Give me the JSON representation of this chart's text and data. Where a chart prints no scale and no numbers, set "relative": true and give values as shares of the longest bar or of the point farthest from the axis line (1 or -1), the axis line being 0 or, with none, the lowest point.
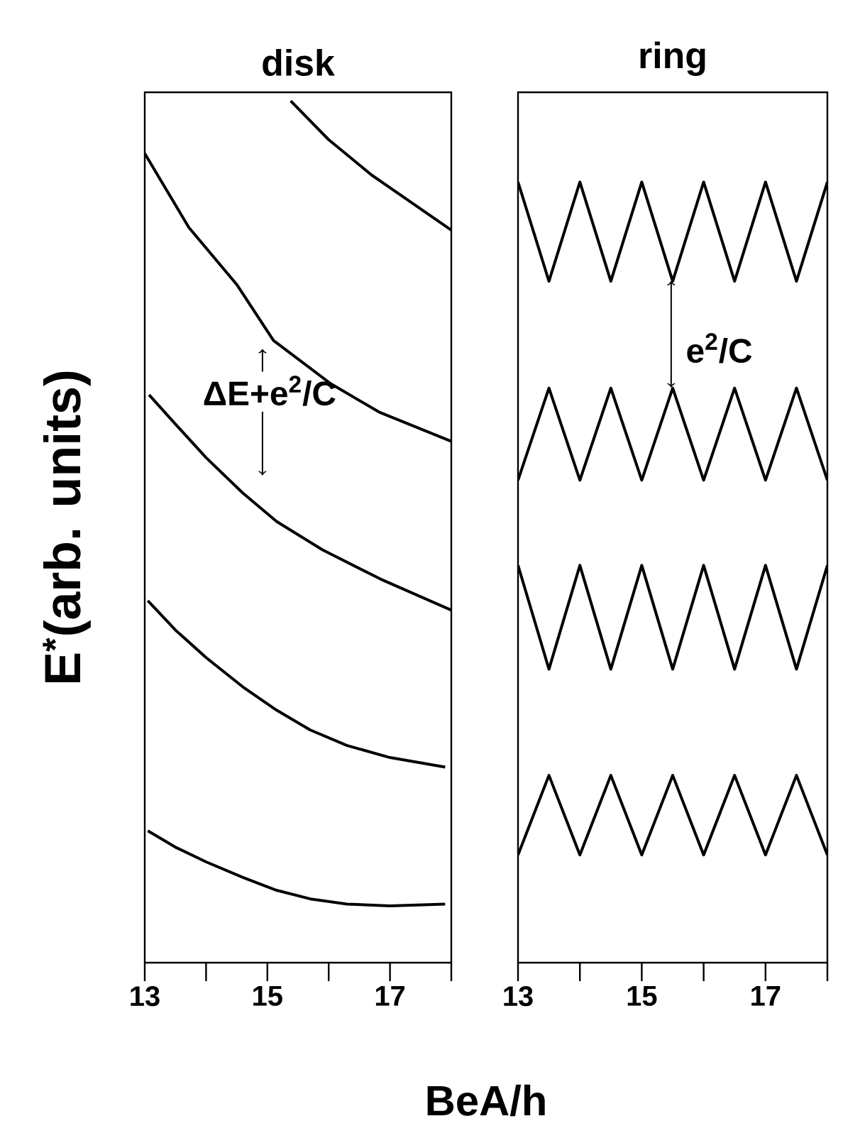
{
  "chart_data": [
    {
      "type": "line",
      "title": "disk",
      "xlabel": "BeA/h",
      "ylabel": "E$^{*}$(arb. units)",
      "relative": true,
      "xlim": [
        13,
        18
      ],
      "xticks": [
        13,
        {
          "value": 14,
          "label": null
        },
        15,
        {
          "value": 16,
          "label": null
        },
        17,
        {
          "value": 18,
          "label": null
        }
      ],
      "annotations": [
        "ΔE+e$^{2}$/C"
      ],
      "series": [
        {
          "color": "#000000",
          "x": [
            13.05,
            13.5,
            14,
            14.6,
            15.15,
            15.7,
            16.3,
            17,
            17.9
          ],
          "values": [
            0.153,
            0.134,
            0.117,
            0.099,
            0.084,
            0.074,
            0.068,
            0.066,
            0.068
          ]
        },
        {
          "color": "#000000",
          "x": [
            13.05,
            13.5,
            14,
            14.6,
            15.15,
            15.7,
            16.3,
            17,
            17.9
          ],
          "values": [
            0.42,
            0.386,
            0.354,
            0.32,
            0.293,
            0.27,
            0.252,
            0.238,
            0.227
          ]
        },
        {
          "color": "#000000",
          "x": [
            13.07,
            13.5,
            14,
            14.6,
            15.15,
            15.9,
            16.85,
            18
          ],
          "values": [
            0.659,
            0.625,
            0.586,
            0.545,
            0.512,
            0.479,
            0.445,
            0.409
          ]
        },
        {
          "color": "#000000",
          "x": [
            13,
            13.72,
            14.5,
            15.1,
            16.03,
            16.82,
            18
          ],
          "values": [
            0.939,
            0.853,
            0.787,
            0.722,
            0.672,
            0.639,
            0.605
          ]
        },
        {
          "color": "#000000",
          "x": [
            15.38,
            16,
            16.7,
            18
          ],
          "values": [
            1.0,
            0.955,
            0.914,
            0.85
          ]
        }
      ]
    },
    {
      "type": "line",
      "title": "ring",
      "relative": true,
      "xlim": [
        13,
        18
      ],
      "xticks": [
        13,
        {
          "value": 14,
          "label": null
        },
        15,
        {
          "value": 16,
          "label": null
        },
        17,
        {
          "value": 18,
          "label": null
        }
      ],
      "annotations": [
        "e$^{2}$/C"
      ],
      "series": [
        {
          "color": "#000000",
          "x": [
            13,
            13.5,
            14,
            14.5,
            15,
            15.5,
            16,
            16.5,
            17,
            17.5,
            18
          ],
          "values": [
            1.0,
            0.873,
            1.0,
            0.873,
            1.0,
            0.873,
            1.0,
            0.873,
            1.0,
            0.873,
            1.0
          ]
        },
        {
          "color": "#000000",
          "x": [
            13,
            13.5,
            14,
            14.5,
            15,
            15.5,
            16,
            16.5,
            17,
            17.5,
            18
          ],
          "values": [
            0.618,
            0.736,
            0.618,
            0.736,
            0.618,
            0.736,
            0.618,
            0.736,
            0.618,
            0.736,
            0.618
          ]
        },
        {
          "color": "#000000",
          "x": [
            13,
            13.5,
            14,
            14.5,
            15,
            15.5,
            16,
            16.5,
            17,
            17.5,
            18
          ],
          "values": [
            0.509,
            0.376,
            0.509,
            0.376,
            0.509,
            0.376,
            0.509,
            0.376,
            0.509,
            0.376,
            0.509
          ]
        },
        {
          "color": "#000000",
          "x": [
            13,
            13.5,
            14,
            14.5,
            15,
            15.5,
            16,
            16.5,
            17,
            17.5,
            18
          ],
          "values": [
            0.138,
            0.24,
            0.138,
            0.24,
            0.138,
            0.24,
            0.138,
            0.24,
            0.138,
            0.24,
            0.138
          ]
        }
      ]
    }
  ]
}
